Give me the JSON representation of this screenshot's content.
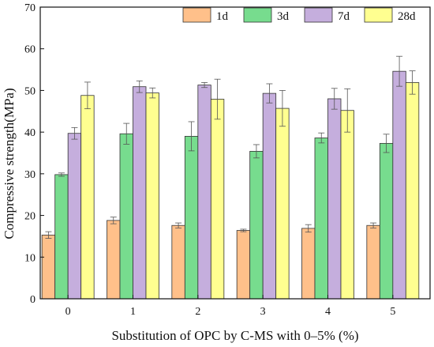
{
  "chart_data": {
    "type": "bar",
    "title": "",
    "xlabel": "Substitution of OPC by C-MS with 0–5% (%)",
    "ylabel": "Compressive strength(MPa)",
    "ylim": [
      0,
      70
    ],
    "yticks": [
      0,
      10,
      20,
      30,
      40,
      50,
      60,
      70
    ],
    "categories": [
      "0",
      "1",
      "2",
      "3",
      "4",
      "5"
    ],
    "legend_position": "top-right",
    "grid": false,
    "error_bars": true,
    "series": [
      {
        "name": "1d",
        "color": "#FFC08A",
        "values": [
          15.3,
          18.8,
          17.6,
          16.4,
          16.9,
          17.6
        ],
        "errors": [
          0.8,
          0.8,
          0.6,
          0.3,
          0.9,
          0.6
        ]
      },
      {
        "name": "3d",
        "color": "#77DC8E",
        "values": [
          29.8,
          39.6,
          39.0,
          35.4,
          38.6,
          37.3
        ],
        "errors": [
          0.4,
          2.5,
          3.5,
          1.6,
          1.2,
          2.2
        ]
      },
      {
        "name": "7d",
        "color": "#C5AEDD",
        "values": [
          39.7,
          50.9,
          51.3,
          49.3,
          48.0,
          54.6
        ],
        "errors": [
          1.4,
          1.4,
          0.6,
          2.3,
          2.5,
          3.6
        ]
      },
      {
        "name": "28d",
        "color": "#FFFF90",
        "values": [
          48.8,
          49.4,
          47.9,
          45.7,
          45.2,
          51.9
        ],
        "errors": [
          3.2,
          1.2,
          4.8,
          4.3,
          5.2,
          2.8
        ]
      }
    ]
  }
}
